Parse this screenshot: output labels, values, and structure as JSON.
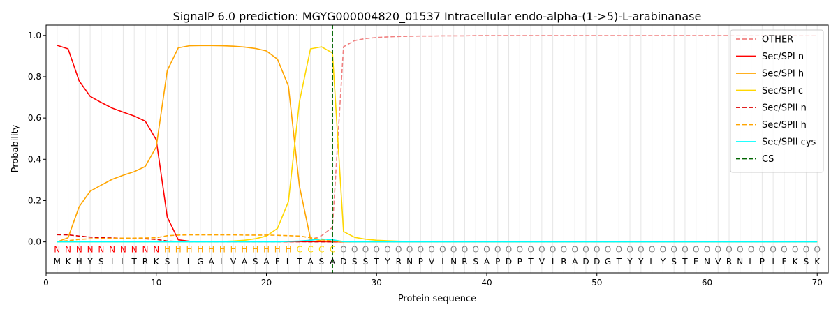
{
  "chart_data": {
    "type": "line",
    "title": "SignalP 6.0 prediction: MGYG000004820_01537 Intracellular endo-alpha-(1->5)-L-arabinanase",
    "xlabel": "Protein sequence",
    "ylabel": "Probability",
    "xlim": [
      0,
      71
    ],
    "ylim": [
      -0.15,
      1.05
    ],
    "xticks": [
      0,
      10,
      20,
      30,
      40,
      50,
      60,
      70
    ],
    "yticks": [
      0.0,
      0.2,
      0.4,
      0.6,
      0.8,
      1.0
    ],
    "grid": "vertical lines at each residue",
    "legend_position": "top-right",
    "residues": [
      "M",
      "K",
      "H",
      "Y",
      "S",
      "I",
      "L",
      "T",
      "R",
      "K",
      "S",
      "L",
      "L",
      "G",
      "A",
      "L",
      "V",
      "A",
      "S",
      "A",
      "F",
      "L",
      "T",
      "A",
      "S",
      "A",
      "D",
      "S",
      "S",
      "T",
      "Y",
      "R",
      "N",
      "P",
      "V",
      "I",
      "N",
      "R",
      "S",
      "A",
      "P",
      "D",
      "P",
      "T",
      "V",
      "I",
      "R",
      "A",
      "D",
      "D",
      "G",
      "T",
      "Y",
      "Y",
      "L",
      "Y",
      "S",
      "T",
      "E",
      "N",
      "V",
      "R",
      "N",
      "L",
      "P",
      "I",
      "F",
      "K",
      "S",
      "K"
    ],
    "labels": [
      "N",
      "N",
      "N",
      "N",
      "N",
      "N",
      "N",
      "N",
      "N",
      "N",
      "H",
      "H",
      "H",
      "H",
      "H",
      "H",
      "H",
      "H",
      "H",
      "H",
      "H",
      "H",
      "C",
      "C",
      "C",
      "C",
      "O",
      "O",
      "O",
      "O",
      "O",
      "O",
      "O",
      "O",
      "O",
      "O",
      "O",
      "O",
      "O",
      "O",
      "O",
      "O",
      "O",
      "O",
      "O",
      "O",
      "O",
      "O",
      "O",
      "O",
      "O",
      "O",
      "O",
      "O",
      "O",
      "O",
      "O",
      "O",
      "O",
      "O",
      "O",
      "O",
      "O",
      "O",
      "O",
      "O",
      "O",
      "O",
      "O",
      "O"
    ],
    "label_colors": {
      "N": "#ff0000",
      "H": "#ffa500",
      "C": "#ffd700",
      "O": "#808080"
    },
    "cs_position": 26,
    "series": [
      {
        "name": "OTHER",
        "color": "#f08080",
        "dash": "dashed",
        "values": [
          0.0,
          0.0,
          0.0,
          0.0,
          0.0,
          0.0,
          0.0,
          0.0,
          0.0,
          0.0,
          0.0,
          0.0,
          0.0,
          0.0,
          0.0,
          0.0,
          0.0,
          0.0,
          0.0,
          0.0,
          0.0,
          0.0,
          0.0,
          0.01,
          0.03,
          0.07,
          0.945,
          0.975,
          0.985,
          0.99,
          0.993,
          0.995,
          0.996,
          0.997,
          0.997,
          0.998,
          0.998,
          0.998,
          0.999,
          0.999,
          0.999,
          0.999,
          0.999,
          0.999,
          0.999,
          0.999,
          0.999,
          0.999,
          0.999,
          0.999,
          0.999,
          0.999,
          0.999,
          0.999,
          0.999,
          0.999,
          0.999,
          0.999,
          0.999,
          0.999,
          0.999,
          0.999,
          0.999,
          0.999,
          0.999,
          0.999,
          0.999,
          0.999,
          0.999,
          0.999
        ]
      },
      {
        "name": "Sec/SPI n",
        "color": "#ff0000",
        "dash": "solid",
        "values": [
          0.952,
          0.935,
          0.78,
          0.705,
          0.675,
          0.648,
          0.628,
          0.61,
          0.585,
          0.495,
          0.12,
          0.01,
          0.003,
          0.002,
          0.001,
          0.001,
          0.001,
          0.001,
          0.001,
          0.001,
          0.001,
          0.001,
          0.001,
          0.001,
          0.001,
          0.0,
          0.0,
          0.0,
          0.0,
          0.0,
          0.0,
          0.0,
          0.0,
          0.0,
          0.0,
          0.0,
          0.0,
          0.0,
          0.0,
          0.0,
          0.0,
          0.0,
          0.0,
          0.0,
          0.0,
          0.0,
          0.0,
          0.0,
          0.0,
          0.0,
          0.0,
          0.0,
          0.0,
          0.0,
          0.0,
          0.0,
          0.0,
          0.0,
          0.0,
          0.0,
          0.0,
          0.0,
          0.0,
          0.0,
          0.0,
          0.0,
          0.0,
          0.0,
          0.0,
          0.0
        ]
      },
      {
        "name": "Sec/SPI h",
        "color": "#ffa500",
        "dash": "solid",
        "values": [
          0.0,
          0.02,
          0.17,
          0.245,
          0.275,
          0.303,
          0.323,
          0.34,
          0.365,
          0.46,
          0.83,
          0.94,
          0.95,
          0.951,
          0.951,
          0.95,
          0.948,
          0.944,
          0.937,
          0.925,
          0.885,
          0.755,
          0.27,
          0.015,
          0.005,
          0.002,
          0.0,
          0.0,
          0.0,
          0.0,
          0.0,
          0.0,
          0.0,
          0.0,
          0.0,
          0.0,
          0.0,
          0.0,
          0.0,
          0.0,
          0.0,
          0.0,
          0.0,
          0.0,
          0.0,
          0.0,
          0.0,
          0.0,
          0.0,
          0.0,
          0.0,
          0.0,
          0.0,
          0.0,
          0.0,
          0.0,
          0.0,
          0.0,
          0.0,
          0.0,
          0.0,
          0.0,
          0.0,
          0.0,
          0.0,
          0.0,
          0.0,
          0.0,
          0.0,
          0.0
        ]
      },
      {
        "name": "Sec/SPI c",
        "color": "#ffd700",
        "dash": "solid",
        "values": [
          0.0,
          0.0,
          0.0,
          0.0,
          0.0,
          0.0,
          0.0,
          0.0,
          0.0,
          0.0,
          0.0,
          0.0,
          0.0,
          0.0,
          0.0,
          0.002,
          0.004,
          0.008,
          0.015,
          0.028,
          0.065,
          0.195,
          0.68,
          0.935,
          0.945,
          0.915,
          0.05,
          0.022,
          0.013,
          0.008,
          0.005,
          0.003,
          0.002,
          0.001,
          0.0,
          0.0,
          0.0,
          0.0,
          0.0,
          0.0,
          0.0,
          0.0,
          0.0,
          0.0,
          0.0,
          0.0,
          0.0,
          0.0,
          0.0,
          0.0,
          0.0,
          0.0,
          0.0,
          0.0,
          0.0,
          0.0,
          0.0,
          0.0,
          0.0,
          0.0,
          0.0,
          0.0,
          0.0,
          0.0,
          0.0,
          0.0,
          0.0,
          0.0,
          0.0,
          0.0
        ]
      },
      {
        "name": "Sec/SPII n",
        "color": "#dd0000",
        "dash": "dashed",
        "values": [
          0.035,
          0.034,
          0.028,
          0.023,
          0.02,
          0.019,
          0.017,
          0.016,
          0.015,
          0.012,
          0.004,
          0.002,
          0.001,
          0.001,
          0.001,
          0.001,
          0.001,
          0.001,
          0.001,
          0.001,
          0.001,
          0.001,
          0.001,
          0.0,
          0.0,
          0.0,
          0.0,
          0.0,
          0.0,
          0.0,
          0.0,
          0.0,
          0.0,
          0.0,
          0.0,
          0.0,
          0.0,
          0.0,
          0.0,
          0.0,
          0.0,
          0.0,
          0.0,
          0.0,
          0.0,
          0.0,
          0.0,
          0.0,
          0.0,
          0.0,
          0.0,
          0.0,
          0.0,
          0.0,
          0.0,
          0.0,
          0.0,
          0.0,
          0.0,
          0.0,
          0.0,
          0.0,
          0.0,
          0.0,
          0.0,
          0.0,
          0.0,
          0.0,
          0.0,
          0.0
        ]
      },
      {
        "name": "Sec/SPII h",
        "color": "#ffa500",
        "dash": "dashed",
        "values": [
          0.002,
          0.006,
          0.012,
          0.015,
          0.016,
          0.017,
          0.018,
          0.018,
          0.019,
          0.02,
          0.03,
          0.033,
          0.034,
          0.034,
          0.034,
          0.034,
          0.034,
          0.033,
          0.033,
          0.033,
          0.032,
          0.03,
          0.028,
          0.02,
          0.012,
          0.004,
          0.0,
          0.0,
          0.0,
          0.0,
          0.0,
          0.0,
          0.0,
          0.0,
          0.0,
          0.0,
          0.0,
          0.0,
          0.0,
          0.0,
          0.0,
          0.0,
          0.0,
          0.0,
          0.0,
          0.0,
          0.0,
          0.0,
          0.0,
          0.0,
          0.0,
          0.0,
          0.0,
          0.0,
          0.0,
          0.0,
          0.0,
          0.0,
          0.0,
          0.0,
          0.0,
          0.0,
          0.0,
          0.0,
          0.0,
          0.0,
          0.0,
          0.0,
          0.0,
          0.0
        ]
      },
      {
        "name": "Sec/SPII cys",
        "color": "#00ffff",
        "dash": "solid",
        "values": [
          0.0,
          0.0,
          0.0,
          0.0,
          0.0,
          0.0,
          0.0,
          0.0,
          0.0,
          0.0,
          0.0,
          0.0,
          0.0,
          0.0,
          0.0,
          0.0,
          0.0,
          0.0,
          0.0,
          0.0,
          0.0,
          0.002,
          0.004,
          0.008,
          0.014,
          0.01,
          0.001,
          0.0,
          0.0,
          0.0,
          0.0,
          0.0,
          0.0,
          0.0,
          0.0,
          0.0,
          0.0,
          0.0,
          0.0,
          0.0,
          0.0,
          0.0,
          0.0,
          0.0,
          0.0,
          0.0,
          0.0,
          0.0,
          0.0,
          0.0,
          0.0,
          0.0,
          0.0,
          0.0,
          0.0,
          0.0,
          0.0,
          0.0,
          0.0,
          0.0,
          0.0,
          0.0,
          0.0,
          0.0,
          0.0,
          0.0,
          0.0,
          0.0,
          0.0,
          0.0
        ]
      }
    ],
    "cs_legend": {
      "name": "CS",
      "color": "#006400",
      "dash": "dashed"
    }
  }
}
